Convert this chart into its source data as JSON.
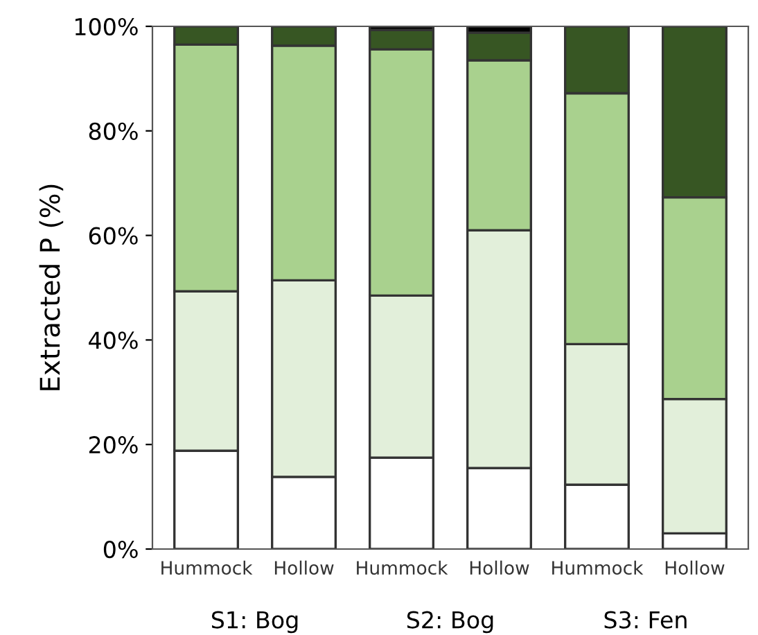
{
  "chart_data": {
    "type": "bar",
    "stacked": true,
    "ylabel": "Extracted P (%)",
    "categories": [
      "Hummock",
      "Hollow",
      "Hummock",
      "Hollow",
      "Hummock",
      "Hollow"
    ],
    "series": [
      {
        "color": "#ffffff",
        "values": [
          18.8,
          13.8,
          17.5,
          15.5,
          12.3,
          3.0
        ]
      },
      {
        "color": "#e2efda",
        "values": [
          30.5,
          37.6,
          31.0,
          45.5,
          26.9,
          25.7
        ]
      },
      {
        "color": "#a9d18e",
        "values": [
          47.2,
          44.9,
          47.1,
          32.5,
          48.0,
          38.6
        ]
      },
      {
        "color": "#375623",
        "values": [
          3.5,
          3.7,
          3.7,
          5.3,
          12.8,
          32.7
        ]
      },
      {
        "color": "#000000",
        "values": [
          0,
          0,
          0.7,
          1.2,
          0,
          0
        ]
      }
    ],
    "ylim": [
      0,
      100
    ],
    "yticks": [
      {
        "value": 0,
        "label": "0%"
      },
      {
        "value": 20,
        "label": "20%"
      },
      {
        "value": 40,
        "label": "40%"
      },
      {
        "value": 60,
        "label": "60%"
      },
      {
        "value": 80,
        "label": "80%"
      },
      {
        "value": 100,
        "label": "100%"
      }
    ],
    "annotations": [
      "S1: Bog",
      "S2: Bog",
      "S3: Fen"
    ],
    "grid": false,
    "legend": false
  }
}
